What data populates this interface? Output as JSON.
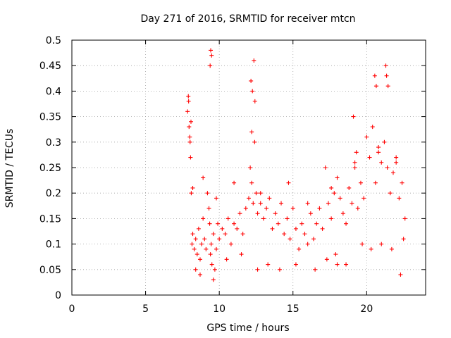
{
  "chart_data": {
    "type": "scatter",
    "title": "Day 271 of 2016, SRMTID for receiver mtcn",
    "xlabel": "GPS time / hours",
    "ylabel": "SRMTID / TECUs",
    "xlim": [
      0,
      24
    ],
    "ylim": [
      0,
      0.5
    ],
    "xticks": [
      0,
      5,
      10,
      15,
      20
    ],
    "xtick_labels": [
      "0",
      "5",
      "10",
      "15",
      "20"
    ],
    "yticks": [
      0,
      0.05,
      0.1,
      0.15,
      0.2,
      0.25,
      0.3,
      0.35,
      0.4,
      0.45,
      0.5
    ],
    "ytick_labels": [
      "0",
      "0.05",
      "0.1",
      "0.15",
      "0.2",
      "0.25",
      "0.3",
      "0.35",
      "0.4",
      "0.45",
      "0.5"
    ],
    "grid": true,
    "marker": "+",
    "color": "#ff0000",
    "series": [
      {
        "name": "SRMTID",
        "x": [
          7.9,
          7.95,
          8.0,
          8.05,
          8.1,
          8.15,
          8.2,
          8.3,
          8.4,
          8.5,
          8.6,
          8.7,
          8.8,
          8.9,
          9.0,
          9.1,
          9.2,
          9.3,
          9.35,
          9.4,
          9.45,
          9.5,
          9.6,
          9.7,
          9.8,
          9.9,
          10.0,
          10.2,
          10.4,
          10.6,
          10.8,
          11.0,
          11.2,
          11.4,
          11.6,
          11.8,
          12.0,
          12.1,
          12.2,
          12.3,
          12.4,
          12.5,
          12.6,
          12.8,
          13.0,
          13.2,
          13.4,
          13.6,
          13.8,
          14.0,
          14.2,
          14.4,
          14.6,
          14.8,
          15.0,
          15.2,
          15.4,
          15.6,
          15.8,
          16.0,
          16.2,
          16.4,
          16.6,
          16.8,
          17.0,
          17.2,
          17.4,
          17.6,
          17.8,
          18.0,
          18.2,
          18.4,
          18.6,
          18.8,
          19.0,
          19.2,
          19.4,
          19.6,
          19.8,
          20.0,
          20.2,
          20.4,
          20.6,
          20.8,
          21.0,
          21.2,
          21.4,
          21.6,
          21.8,
          22.0,
          22.2,
          22.4,
          22.6,
          7.85,
          7.92,
          8.02,
          8.08,
          9.42,
          9.48,
          9.38,
          12.15,
          12.25,
          12.35,
          12.42,
          12.2,
          20.55,
          20.65,
          21.3,
          21.35,
          21.45,
          19.1,
          19.3,
          18.0,
          17.9,
          8.4,
          8.7,
          9.6,
          10.5,
          11.5,
          12.6,
          13.3,
          14.1,
          15.2,
          16.5,
          17.3,
          18.6,
          19.7,
          20.3,
          21.0,
          21.7,
          22.3,
          22.5,
          8.2,
          8.9,
          9.8,
          11.0,
          12.8,
          14.7,
          16.0,
          17.6,
          19.2,
          20.8,
          22.0
        ],
        "y": [
          0.39,
          0.33,
          0.31,
          0.27,
          0.2,
          0.1,
          0.12,
          0.09,
          0.11,
          0.08,
          0.13,
          0.07,
          0.1,
          0.15,
          0.11,
          0.09,
          0.2,
          0.17,
          0.14,
          0.08,
          0.1,
          0.06,
          0.12,
          0.05,
          0.09,
          0.14,
          0.11,
          0.13,
          0.12,
          0.15,
          0.1,
          0.14,
          0.13,
          0.16,
          0.12,
          0.17,
          0.19,
          0.25,
          0.22,
          0.18,
          0.3,
          0.2,
          0.16,
          0.18,
          0.15,
          0.17,
          0.19,
          0.13,
          0.16,
          0.14,
          0.18,
          0.12,
          0.15,
          0.11,
          0.17,
          0.13,
          0.09,
          0.14,
          0.12,
          0.1,
          0.16,
          0.11,
          0.14,
          0.17,
          0.13,
          0.25,
          0.18,
          0.15,
          0.2,
          0.23,
          0.19,
          0.16,
          0.14,
          0.21,
          0.18,
          0.25,
          0.17,
          0.22,
          0.19,
          0.31,
          0.27,
          0.33,
          0.22,
          0.28,
          0.26,
          0.3,
          0.25,
          0.2,
          0.24,
          0.27,
          0.19,
          0.22,
          0.15,
          0.36,
          0.38,
          0.3,
          0.34,
          0.48,
          0.47,
          0.45,
          0.42,
          0.4,
          0.46,
          0.38,
          0.32,
          0.43,
          0.41,
          0.45,
          0.43,
          0.41,
          0.35,
          0.28,
          0.06,
          0.08,
          0.05,
          0.04,
          0.03,
          0.07,
          0.08,
          0.05,
          0.06,
          0.05,
          0.06,
          0.05,
          0.07,
          0.06,
          0.1,
          0.09,
          0.1,
          0.09,
          0.04,
          0.11,
          0.21,
          0.23,
          0.19,
          0.22,
          0.2,
          0.22,
          0.18,
          0.21,
          0.26,
          0.29,
          0.26
        ]
      }
    ]
  }
}
